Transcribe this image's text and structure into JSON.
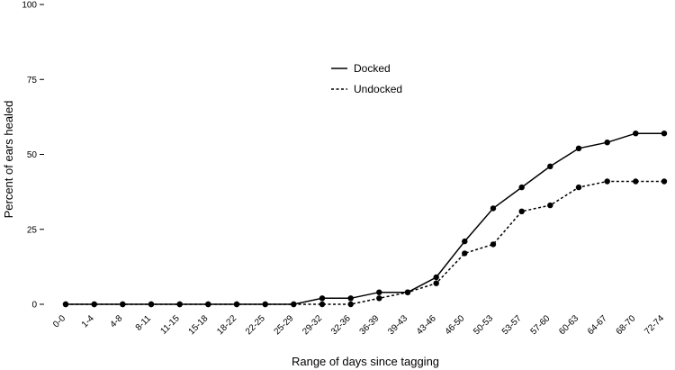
{
  "chart_data": {
    "type": "line",
    "xlabel": "Range of days since tagging",
    "ylabel": "Percent of ears healed",
    "ylim": [
      0,
      100
    ],
    "yticks": [
      0,
      25,
      50,
      75,
      100
    ],
    "grid": false,
    "legend_position": "top-center",
    "categories": [
      "0-0",
      "1-4",
      "4-8",
      "8-11",
      "11-15",
      "15-18",
      "18-22",
      "22-25",
      "25-29",
      "29-32",
      "32-36",
      "36-39",
      "39-43",
      "43-46",
      "46-50",
      "50-53",
      "53-57",
      "57-60",
      "60-63",
      "64-67",
      "68-70",
      "72-74"
    ],
    "series": [
      {
        "name": "Docked",
        "line_style": "solid",
        "color": "#000000",
        "values": [
          0,
          0,
          0,
          0,
          0,
          0,
          0,
          0,
          0,
          2,
          2,
          4,
          4,
          9,
          21,
          32,
          39,
          46,
          52,
          54,
          57,
          57
        ]
      },
      {
        "name": "Undocked",
        "line_style": "dotted",
        "color": "#000000",
        "values": [
          0,
          0,
          0,
          0,
          0,
          0,
          0,
          0,
          0,
          0,
          0,
          2,
          4,
          7,
          17,
          20,
          31,
          33,
          39,
          41,
          41,
          41
        ]
      }
    ]
  }
}
